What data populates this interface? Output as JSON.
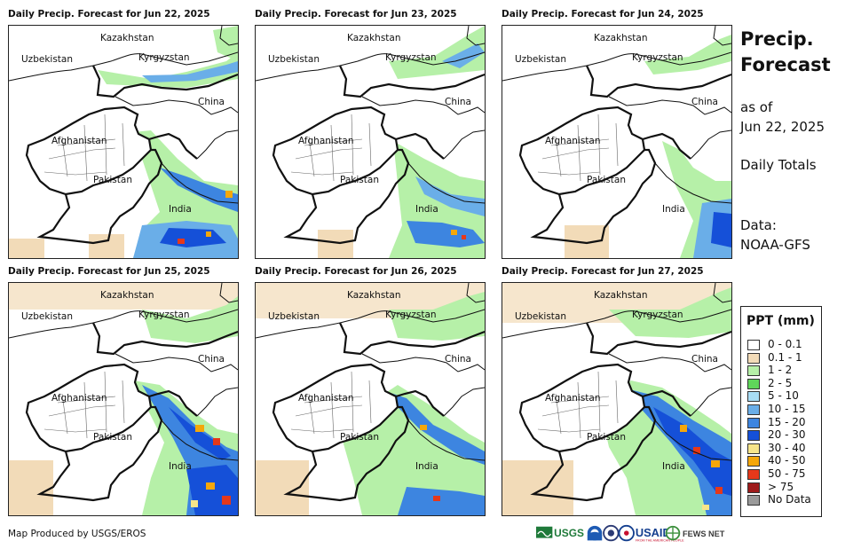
{
  "panels": [
    {
      "title": "Daily Precip. Forecast for Jun 22, 2025"
    },
    {
      "title": "Daily Precip. Forecast for Jun 23, 2025"
    },
    {
      "title": "Daily Precip. Forecast for Jun 24, 2025"
    },
    {
      "title": "Daily Precip. Forecast for Jun 25, 2025"
    },
    {
      "title": "Daily Precip. Forecast for Jun 26, 2025"
    },
    {
      "title": "Daily Precip. Forecast for Jun 27, 2025"
    }
  ],
  "places": {
    "kazakhstan": "Kazakhstan",
    "uzbekistan": "Uzbekistan",
    "kyrgyzstan": "Kyrgyzstan",
    "china": "China",
    "afghanistan": "Afghanistan",
    "pakistan": "Pakistan",
    "india": "India"
  },
  "side": {
    "title_line1": "Precip.",
    "title_line2": "Forecast",
    "asof_line1": "as of",
    "asof_line2": "Jun 22, 2025",
    "period": "Daily Totals",
    "data_label": "Data:",
    "data_source": "NOAA-GFS"
  },
  "legend": {
    "title": "PPT (mm)",
    "items": [
      {
        "label": "0 - 0.1",
        "color": "#ffffff"
      },
      {
        "label": "0.1 - 1",
        "color": "#f2dbb8"
      },
      {
        "label": "1 - 2",
        "color": "#b6f0a8"
      },
      {
        "label": "2 - 5",
        "color": "#5fd65a"
      },
      {
        "label": "5 - 10",
        "color": "#a8ddf5"
      },
      {
        "label": "10 - 15",
        "color": "#6aaee8"
      },
      {
        "label": "15 - 20",
        "color": "#3d85e0"
      },
      {
        "label": "20 - 30",
        "color": "#1550d8"
      },
      {
        "label": "30 - 40",
        "color": "#f7e58a"
      },
      {
        "label": "40 - 50",
        "color": "#f5a70a"
      },
      {
        "label": "50 - 75",
        "color": "#e5381a"
      },
      {
        "label": "> 75",
        "color": "#9e1b1b"
      },
      {
        "label": "No Data",
        "color": "#9a9a9a"
      }
    ]
  },
  "credit": "Map Produced by USGS/EROS",
  "logos": {
    "usgs": "USGS",
    "usaid": "USAID",
    "fewsnet": "FEWS NET"
  }
}
